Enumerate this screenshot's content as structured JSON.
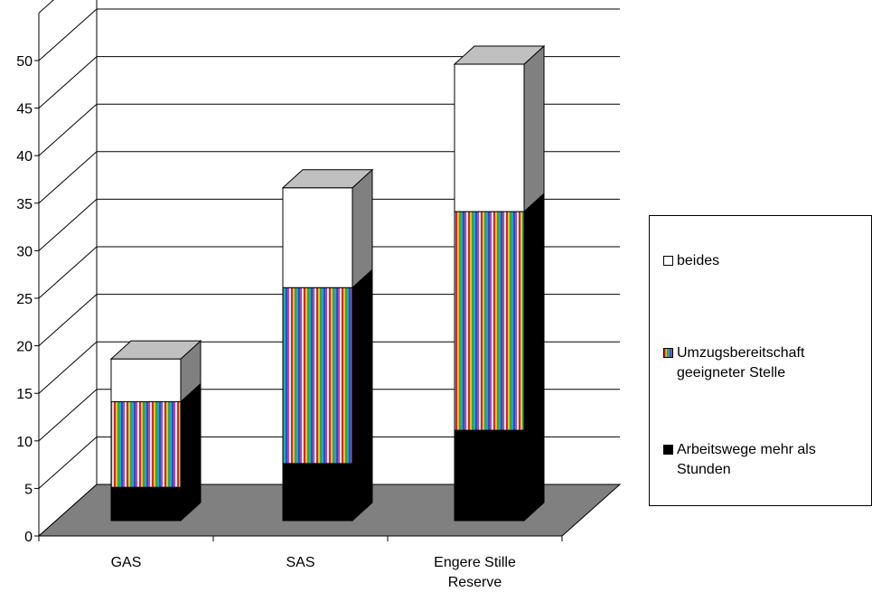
{
  "chart_data": {
    "type": "bar",
    "stacked": true,
    "three_d": true,
    "categories": [
      "GAS",
      "SAS",
      "Engere Stille Reserve"
    ],
    "series": [
      {
        "name": "Arbeitswege mehr als Stunden",
        "values": [
          3.5,
          6,
          9.5
        ],
        "fill": "black"
      },
      {
        "name": "Umzugsbereitschaft geeigneter Stelle",
        "values": [
          9,
          18.5,
          23
        ],
        "fill": "striped"
      },
      {
        "name": "beides",
        "values": [
          4.5,
          10.5,
          15.5
        ],
        "fill": "white"
      }
    ],
    "y_ticks": [
      "0",
      "5",
      "10",
      "15",
      "20",
      "25",
      "30",
      "35",
      "40",
      "45",
      "50"
    ],
    "ylim": [
      0,
      55
    ],
    "grid": true,
    "legend_position": "right",
    "colors": {
      "floor": "#808080",
      "side": "#808080",
      "top": "#c0c0c0",
      "bar_black": "#000000",
      "bar_white": "#ffffff",
      "stripes": [
        "#c03030",
        "#e0c040",
        "#40a040",
        "#30a0c0",
        "#3050b0",
        "#a050b0",
        "#e0e0e0"
      ]
    }
  },
  "legend": {
    "items": [
      {
        "label": "beides",
        "fill": "white"
      },
      {
        "label": "Umzugsbereitschaft geeigneter Stelle",
        "fill": "striped"
      },
      {
        "label": "Arbeitswege mehr als Stunden",
        "fill": "black"
      }
    ]
  }
}
